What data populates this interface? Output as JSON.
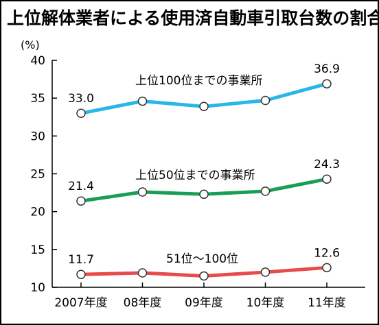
{
  "chart_data": {
    "type": "line",
    "title": "上位解体業者による使用済自動車引取台数の割合",
    "ylabel": "(%)",
    "xlabel": "",
    "categories": [
      "2007年度",
      "08年度",
      "09年度",
      "10年度",
      "11年度"
    ],
    "yticks": [
      "10",
      "15",
      "20",
      "25",
      "30",
      "35",
      "40"
    ],
    "ylim": [
      10,
      40
    ],
    "grid": false,
    "legend": "none",
    "series": [
      {
        "name": "上位100位までの事業所",
        "values": [
          33.0,
          34.6,
          33.9,
          34.7,
          36.9
        ],
        "color": "#29b6e8",
        "labels": [
          {
            "index": 0,
            "text": "33.0"
          },
          {
            "index": 4,
            "text": "36.9"
          }
        ]
      },
      {
        "name": "上位50位までの事業所",
        "values": [
          21.4,
          22.6,
          22.3,
          22.7,
          24.3
        ],
        "color": "#1a9e55",
        "labels": [
          {
            "index": 0,
            "text": "21.4"
          },
          {
            "index": 4,
            "text": "24.3"
          }
        ]
      },
      {
        "name": "51位〜100位",
        "values": [
          11.7,
          11.9,
          11.5,
          12.0,
          12.6
        ],
        "color": "#e84b4b",
        "labels": [
          {
            "index": 0,
            "text": "11.7"
          },
          {
            "index": 4,
            "text": "12.6"
          }
        ]
      }
    ]
  }
}
